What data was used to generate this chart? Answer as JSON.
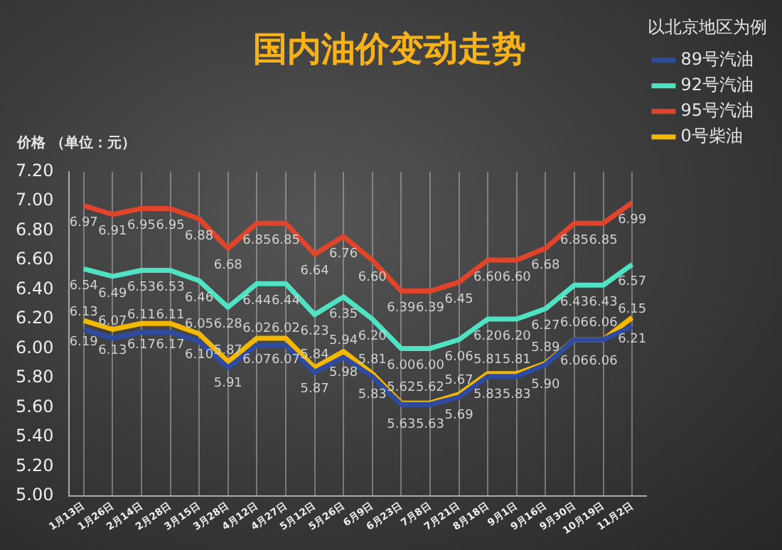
{
  "chart_data": {
    "type": "line",
    "title": "国内油价变动走势",
    "ylabel": "价格 （单位：元）",
    "legend_title": "以北京地区为例",
    "categories": [
      "1月13日",
      "1月26日",
      "2月14日",
      "2月28日",
      "3月15日",
      "3月28日",
      "4月12日",
      "4月27日",
      "5月12日",
      "5月26日",
      "6月9日",
      "6月23日",
      "7月8日",
      "7月21日",
      "8月18日",
      "9月1日",
      "9月16日",
      "9月30日",
      "10月19日",
      "11月2日"
    ],
    "series": [
      {
        "name": "89号汽油",
        "color": "#2f4ba0",
        "values": [
          6.13,
          6.07,
          6.11,
          6.11,
          6.05,
          5.87,
          6.02,
          6.02,
          5.84,
          5.94,
          5.81,
          5.62,
          5.62,
          5.67,
          5.81,
          5.81,
          5.89,
          6.06,
          6.06,
          6.15
        ],
        "value_labels": [
          "6.13",
          "6.07",
          "6.11",
          "6.11",
          "6.05",
          "5.87",
          "6.02",
          "6.02",
          "5.84",
          "5.94",
          "5.81",
          "5.62",
          "5.62",
          "5.67",
          "5.81",
          "5.81",
          "5.89",
          "6.06",
          "6.06",
          "6.15"
        ]
      },
      {
        "name": "92号汽油",
        "color": "#4fe3c4",
        "values": [
          6.54,
          6.49,
          6.53,
          6.53,
          6.46,
          6.28,
          6.44,
          6.44,
          6.23,
          6.35,
          6.2,
          6.0,
          6.0,
          6.06,
          6.2,
          6.2,
          6.27,
          6.43,
          6.43,
          6.57
        ],
        "value_labels": [
          "6.54",
          "6.49",
          "6.53",
          "6.53",
          "6.46",
          "6.28",
          "6.44",
          "6.44",
          "6.23",
          "6.35",
          "6.20",
          "6.00",
          "6.00",
          "6.06",
          "6.20",
          "6.20",
          "6.27",
          "6.43",
          "6.43",
          "6.57"
        ]
      },
      {
        "name": "95号汽油",
        "color": "#e0452c",
        "values": [
          6.97,
          6.91,
          6.95,
          6.95,
          6.88,
          6.68,
          6.85,
          6.85,
          6.64,
          6.76,
          6.6,
          6.39,
          6.39,
          6.45,
          6.6,
          6.6,
          6.68,
          6.85,
          6.85,
          6.99
        ],
        "value_labels": [
          "6.97",
          "6.91",
          "6.95",
          "6.95",
          "6.88",
          "6.68",
          "6.85",
          "6.85",
          "6.64",
          "6.76",
          "6.60",
          "6.39",
          "6.39",
          "6.45",
          "6.60",
          "6.60",
          "6.68",
          "6.85",
          "6.85",
          "6.99"
        ]
      },
      {
        "name": "0号柴油",
        "color": "#f5b800",
        "values": [
          6.19,
          6.13,
          6.17,
          6.17,
          6.1,
          5.91,
          6.07,
          6.07,
          5.87,
          5.98,
          5.83,
          5.63,
          5.63,
          5.69,
          5.83,
          5.83,
          5.9,
          6.06,
          6.06,
          6.21
        ],
        "value_labels": [
          "6.19",
          "6.13",
          "6.17",
          "6.17",
          "6.10",
          "5.91",
          "6.07",
          "6.07",
          "5.87",
          "5.98",
          "5.83",
          "5.63",
          "5.63",
          "5.69",
          "5.83",
          "5.83",
          "5.90",
          "6.06",
          "6.06",
          "6.21"
        ]
      }
    ],
    "ylim": [
      5.0,
      7.2
    ],
    "yticks": [
      {
        "value": 5.0,
        "label": "5.00"
      },
      {
        "value": 5.2,
        "label": "5.20"
      },
      {
        "value": 5.4,
        "label": "5.40"
      },
      {
        "value": 5.6,
        "label": "5.60"
      },
      {
        "value": 5.8,
        "label": "5.80"
      },
      {
        "value": 6.0,
        "label": "6.00"
      },
      {
        "value": 6.2,
        "label": "6.20"
      },
      {
        "value": 6.4,
        "label": "6.40"
      },
      {
        "value": 6.6,
        "label": "6.60"
      },
      {
        "value": 6.8,
        "label": "6.80"
      },
      {
        "value": 7.0,
        "label": "7.00"
      },
      {
        "value": 7.2,
        "label": "7.20"
      }
    ],
    "grid": "x",
    "legend": "right",
    "marker": "none",
    "line_style": "solid"
  }
}
